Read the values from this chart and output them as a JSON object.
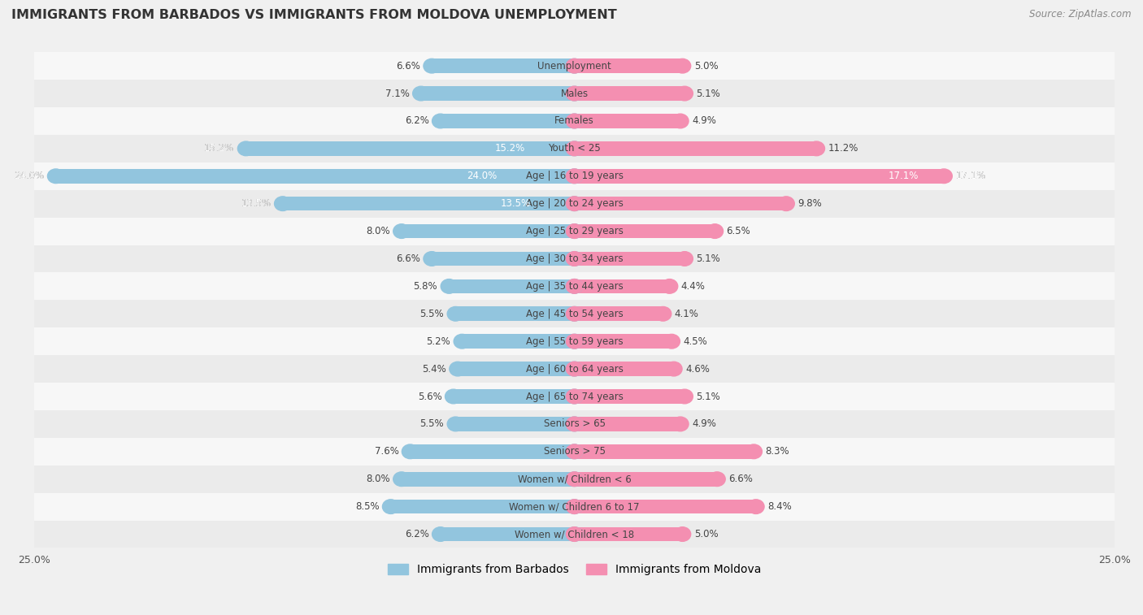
{
  "title": "IMMIGRANTS FROM BARBADOS VS IMMIGRANTS FROM MOLDOVA UNEMPLOYMENT",
  "source": "Source: ZipAtlas.com",
  "categories": [
    "Unemployment",
    "Males",
    "Females",
    "Youth < 25",
    "Age | 16 to 19 years",
    "Age | 20 to 24 years",
    "Age | 25 to 29 years",
    "Age | 30 to 34 years",
    "Age | 35 to 44 years",
    "Age | 45 to 54 years",
    "Age | 55 to 59 years",
    "Age | 60 to 64 years",
    "Age | 65 to 74 years",
    "Seniors > 65",
    "Seniors > 75",
    "Women w/ Children < 6",
    "Women w/ Children 6 to 17",
    "Women w/ Children < 18"
  ],
  "barbados_values": [
    6.6,
    7.1,
    6.2,
    15.2,
    24.0,
    13.5,
    8.0,
    6.6,
    5.8,
    5.5,
    5.2,
    5.4,
    5.6,
    5.5,
    7.6,
    8.0,
    8.5,
    6.2
  ],
  "moldova_values": [
    5.0,
    5.1,
    4.9,
    11.2,
    17.1,
    9.8,
    6.5,
    5.1,
    4.4,
    4.1,
    4.5,
    4.6,
    5.1,
    4.9,
    8.3,
    6.6,
    8.4,
    5.0
  ],
  "barbados_color": "#92c5de",
  "moldova_color": "#f48fb1",
  "axis_max": 25.0,
  "row_color_odd": "#ebebeb",
  "row_color_even": "#f7f7f7",
  "legend_barbados": "Immigrants from Barbados",
  "legend_moldova": "Immigrants from Moldova"
}
